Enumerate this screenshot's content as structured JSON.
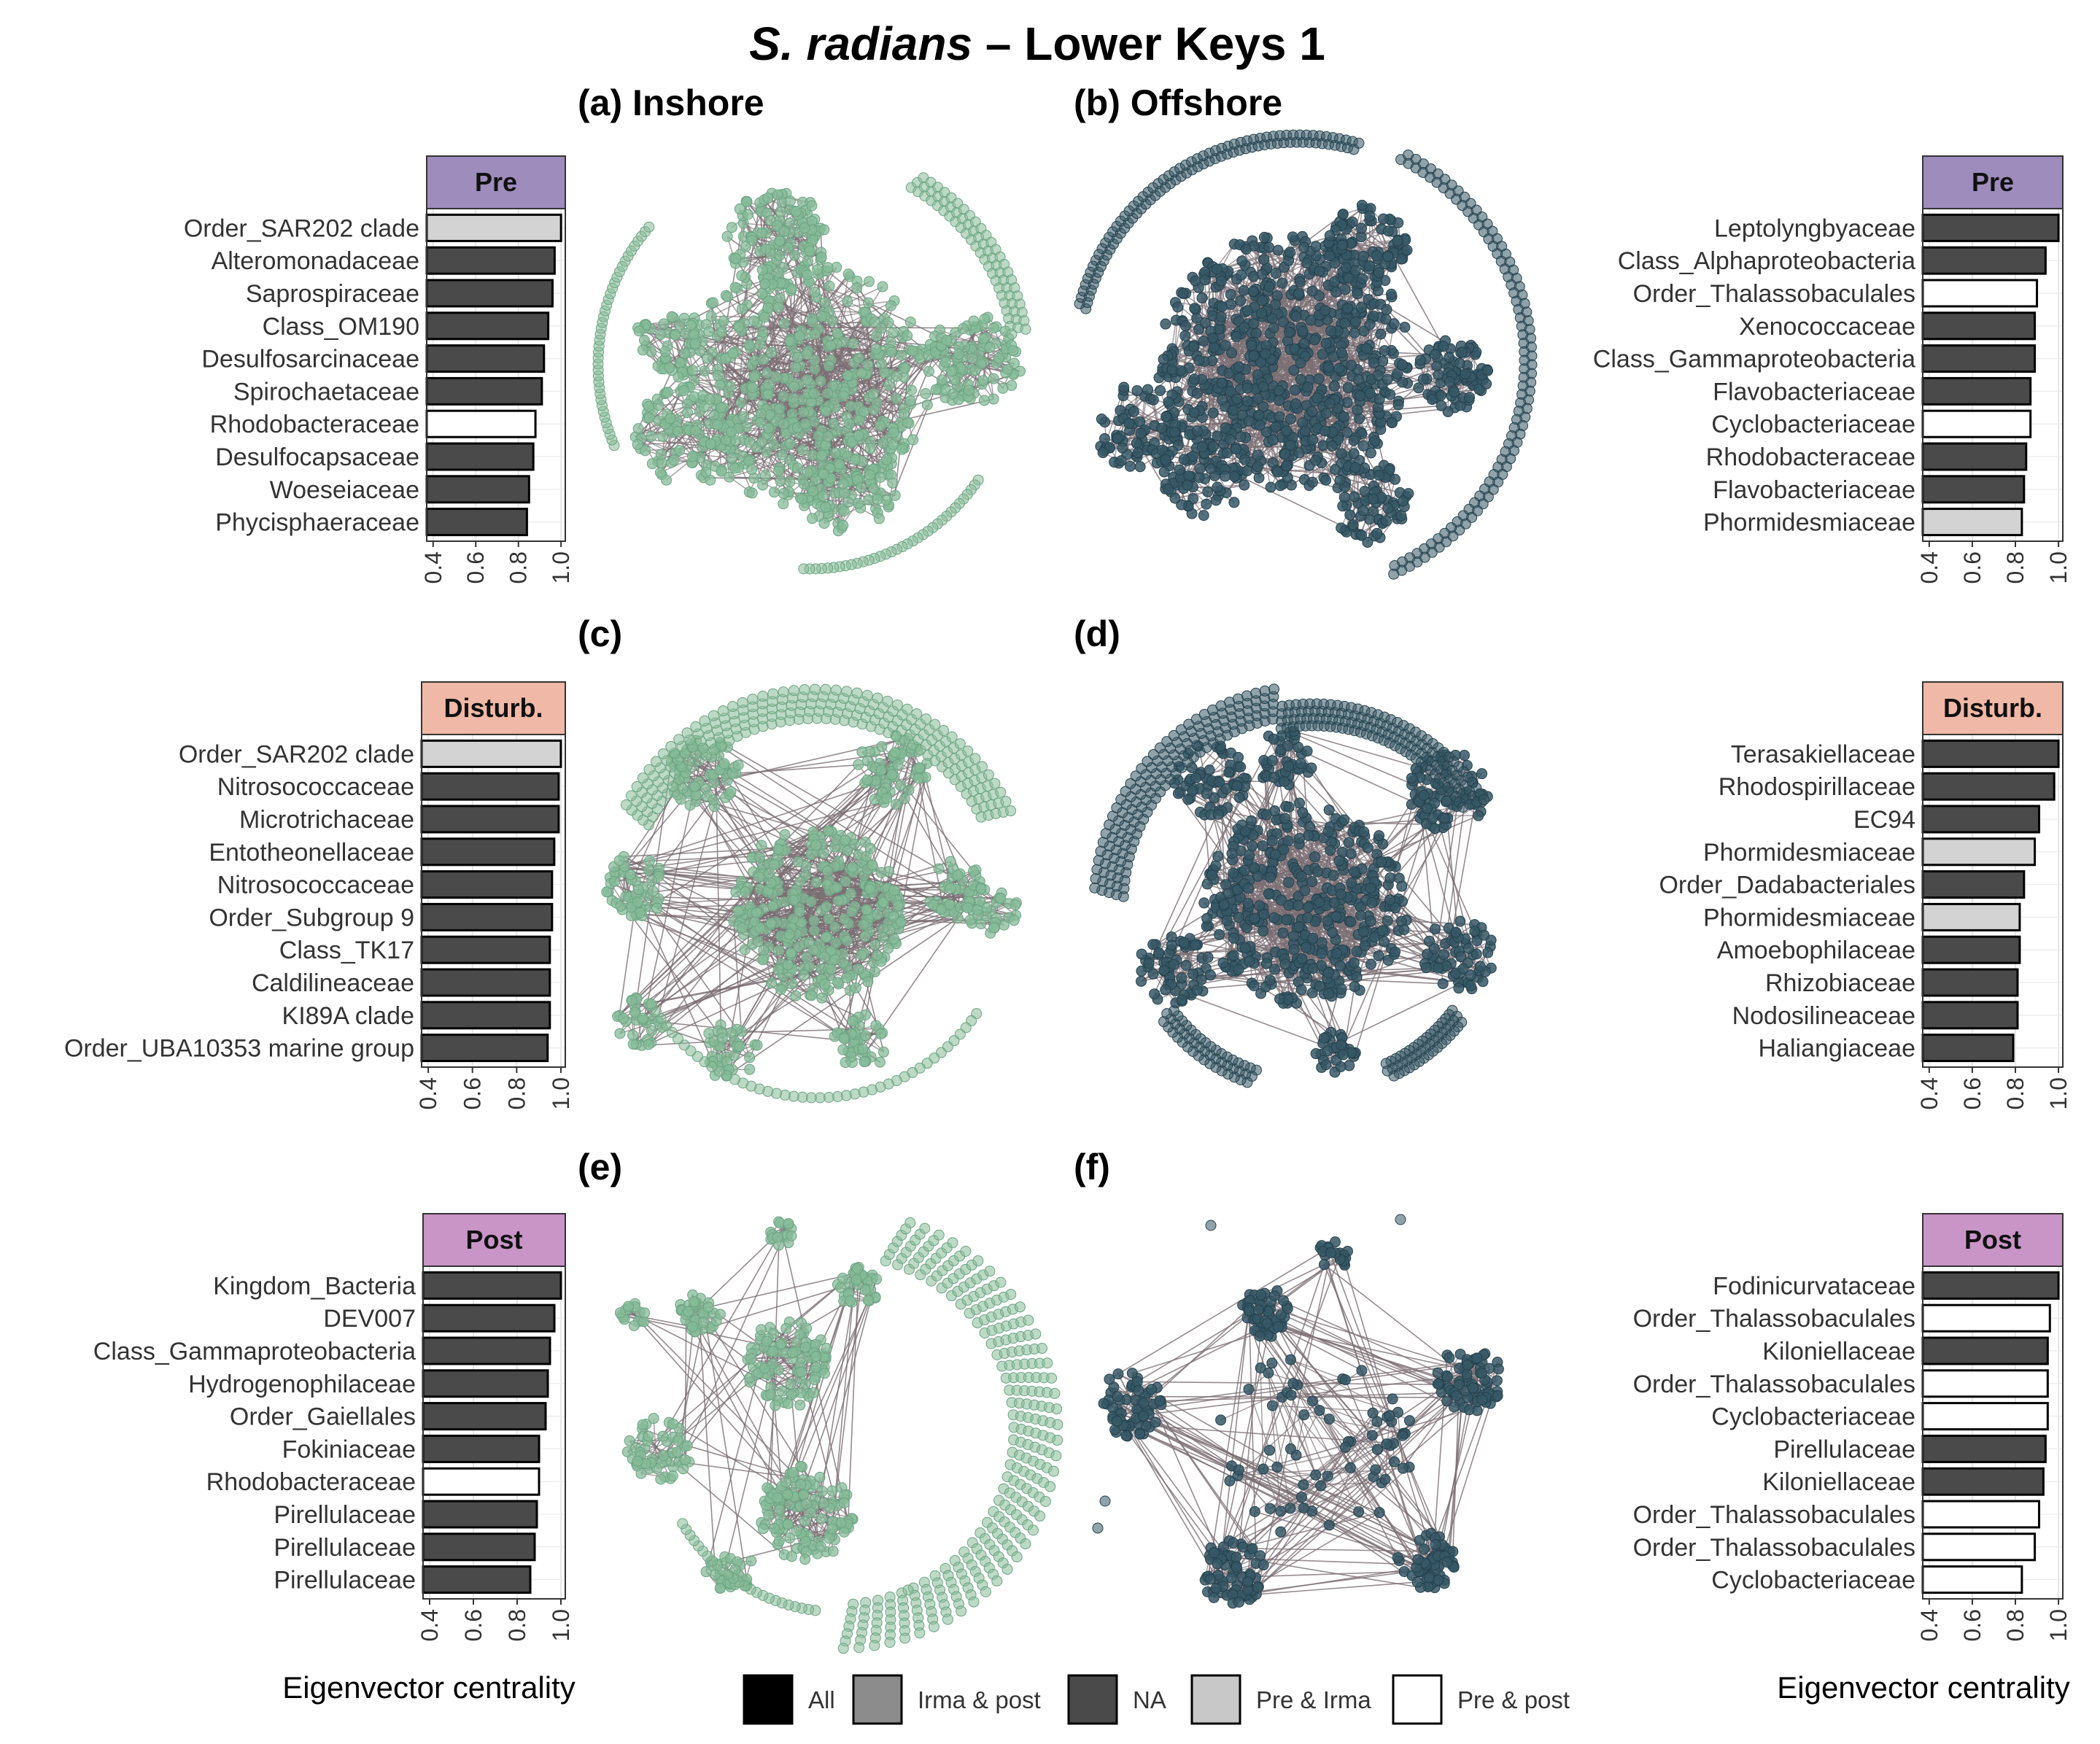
{
  "title": {
    "italic": "S. radians",
    "rest": " – Lower Keys 1"
  },
  "colors": {
    "strip_pre": "#9e8cbd",
    "strip_disturb": "#f0b8a6",
    "strip_post": "#c895c6",
    "inshore_node": "#86bb98",
    "offshore_node": "#365765",
    "edge": "#7a6e73",
    "All": "#000000",
    "Irma & post": "#8c8c8c",
    "NA": "#4a4a4a",
    "Pre & Irma": "#d3d3d3",
    "Pre & post": "#ffffff"
  },
  "network_titles": [
    "(a) Inshore",
    "(b) Offshore",
    "(c)",
    "(d)",
    "(e)",
    "(f)"
  ],
  "axis_label": "Eigenvector centrality",
  "legend": [
    {
      "label": "All",
      "color": "#000000"
    },
    {
      "label": "Irma & post",
      "color": "#8c8c8c"
    },
    {
      "label": "NA",
      "color": "#4a4a4a"
    },
    {
      "label": "Pre & Irma",
      "color": "#c8c8c8"
    },
    {
      "label": "Pre & post",
      "color": "#ffffff"
    }
  ],
  "chart_data": [
    {
      "type": "bar",
      "panel": "a-bars",
      "strip": "Pre",
      "xlim": [
        0.37,
        1.02
      ],
      "xticks": [
        "0.4",
        "0.6",
        "0.8",
        "1.0"
      ],
      "categories": [
        "Order_SAR202 clade",
        "Alteromonadaceae",
        "Saprospiraceae",
        "Class_OM190",
        "Desulfosarcinaceae",
        "Spirochaetaceae",
        "Rhodobacteraceae",
        "Desulfocapsaceae",
        "Woeseiaceae",
        "Phycisphaeraceae"
      ],
      "values": [
        1.0,
        0.97,
        0.96,
        0.94,
        0.92,
        0.91,
        0.88,
        0.87,
        0.85,
        0.84
      ],
      "groups": [
        "Pre & Irma",
        "NA",
        "NA",
        "NA",
        "NA",
        "NA",
        "Pre & post",
        "NA",
        "NA",
        "NA"
      ]
    },
    {
      "type": "bar",
      "panel": "b-bars",
      "strip": "Pre",
      "xlim": [
        0.37,
        1.02
      ],
      "xticks": [
        "0.4",
        "0.6",
        "0.8",
        "1.0"
      ],
      "categories": [
        "Leptolyngbyaceae",
        "Class_Alphaproteobacteria",
        "Order_Thalassobaculales",
        "Xenococcaceae",
        "Class_Gammaproteobacteria",
        "Flavobacteriaceae",
        "Cyclobacteriaceae",
        "Rhodobacteraceae",
        "Flavobacteriaceae",
        "Phormidesmiaceae"
      ],
      "values": [
        1.0,
        0.94,
        0.9,
        0.89,
        0.89,
        0.87,
        0.87,
        0.85,
        0.84,
        0.83
      ],
      "groups": [
        "NA",
        "NA",
        "Pre & post",
        "NA",
        "NA",
        "NA",
        "Pre & post",
        "NA",
        "NA",
        "Pre & Irma"
      ]
    },
    {
      "type": "bar",
      "panel": "c-bars",
      "strip": "Disturb.",
      "xlim": [
        0.37,
        1.02
      ],
      "xticks": [
        "0.4",
        "0.6",
        "0.8",
        "1.0"
      ],
      "categories": [
        "Order_SAR202 clade",
        "Nitrosococcaceae",
        "Microtrichaceae",
        "Entotheonellaceae",
        "Nitrosococcaceae",
        "Order_Subgroup 9",
        "Class_TK17",
        "Caldilineaceae",
        "KI89A clade",
        "Order_UBA10353 marine group"
      ],
      "values": [
        1.0,
        0.99,
        0.99,
        0.97,
        0.96,
        0.96,
        0.95,
        0.95,
        0.95,
        0.94
      ],
      "groups": [
        "Pre & Irma",
        "NA",
        "NA",
        "NA",
        "NA",
        "NA",
        "NA",
        "NA",
        "NA",
        "NA"
      ]
    },
    {
      "type": "bar",
      "panel": "d-bars",
      "strip": "Disturb.",
      "xlim": [
        0.37,
        1.02
      ],
      "xticks": [
        "0.4",
        "0.6",
        "0.8",
        "1.0"
      ],
      "categories": [
        "Terasakiellaceae",
        "Rhodospirillaceae",
        "EC94",
        "Phormidesmiaceae",
        "Order_Dadabacteriales",
        "Phormidesmiaceae",
        "Amoebophilaceae",
        "Rhizobiaceae",
        "Nodosilineaceae",
        "Haliangiaceae"
      ],
      "values": [
        1.0,
        0.98,
        0.91,
        0.89,
        0.84,
        0.82,
        0.82,
        0.81,
        0.81,
        0.79
      ],
      "groups": [
        "NA",
        "NA",
        "NA",
        "Pre & Irma",
        "NA",
        "Pre & Irma",
        "NA",
        "NA",
        "NA",
        "NA"
      ]
    },
    {
      "type": "bar",
      "panel": "e-bars",
      "strip": "Post",
      "xlim": [
        0.37,
        1.02
      ],
      "xticks": [
        "0.4",
        "0.6",
        "0.8",
        "1.0"
      ],
      "categories": [
        "Kingdom_Bacteria",
        "DEV007",
        "Class_Gammaproteobacteria",
        "Hydrogenophilaceae",
        "Order_Gaiellales",
        "Fokiniaceae",
        "Rhodobacteraceae",
        "Pirellulaceae",
        "Pirellulaceae",
        "Pirellulaceae"
      ],
      "values": [
        1.0,
        0.97,
        0.95,
        0.94,
        0.93,
        0.9,
        0.9,
        0.89,
        0.88,
        0.86
      ],
      "groups": [
        "NA",
        "NA",
        "NA",
        "NA",
        "NA",
        "NA",
        "Pre & post",
        "NA",
        "NA",
        "NA"
      ]
    },
    {
      "type": "bar",
      "panel": "f-bars",
      "strip": "Post",
      "xlim": [
        0.37,
        1.02
      ],
      "xticks": [
        "0.4",
        "0.6",
        "0.8",
        "1.0"
      ],
      "categories": [
        "Fodinicurvataceae",
        "Order_Thalassobaculales",
        "Kiloniellaceae",
        "Order_Thalassobaculales",
        "Cyclobacteriaceae",
        "Pirellulaceae",
        "Kiloniellaceae",
        "Order_Thalassobaculales",
        "Order_Thalassobaculales",
        "Cyclobacteriaceae"
      ],
      "values": [
        1.0,
        0.96,
        0.95,
        0.95,
        0.95,
        0.94,
        0.93,
        0.91,
        0.89,
        0.83
      ],
      "groups": [
        "NA",
        "Pre & post",
        "NA",
        "Pre & post",
        "Pre & post",
        "NA",
        "NA",
        "Pre & post",
        "Pre & post",
        "Pre & post"
      ]
    }
  ]
}
